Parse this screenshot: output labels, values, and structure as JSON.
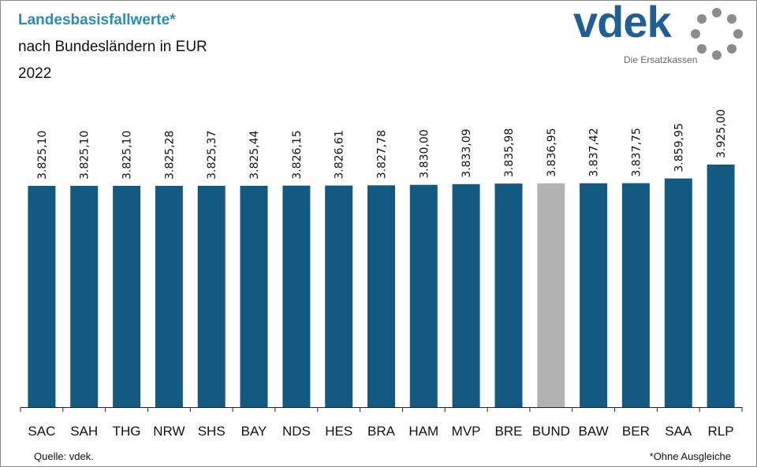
{
  "header": {
    "title": "Landesbasisfallwerte*",
    "subtitle": "nach Bundesländern  in EUR",
    "year": "2022"
  },
  "logo": {
    "wordmark": "vdek",
    "tagline": "Die Ersatzkassen",
    "icon": "dotted-ring-icon"
  },
  "footer": {
    "source": "Quelle: vdek.",
    "footnote": "*Ohne Ausgleiche"
  },
  "colors": {
    "bar": "#135a82",
    "highlight": "#b3b3b3",
    "title": "#2a8bbd",
    "logo": "#1f5f96"
  },
  "chart_data": {
    "type": "bar",
    "title": "Landesbasisfallwerte*",
    "subtitle": "nach Bundesländern  in EUR",
    "xlabel": "",
    "ylabel": "",
    "grid": false,
    "highlight_category": "BUND",
    "categories": [
      "SAC",
      "SAH",
      "THG",
      "NRW",
      "SHS",
      "BAY",
      "NDS",
      "HES",
      "BRA",
      "HAM",
      "MVP",
      "BRE",
      "BUND",
      "BAW",
      "BER",
      "SAA",
      "RLP"
    ],
    "values": [
      3825.1,
      3825.1,
      3825.1,
      3825.28,
      3825.37,
      3825.44,
      3826.15,
      3826.61,
      3827.78,
      3830.0,
      3833.09,
      3835.98,
      3836.95,
      3837.42,
      3837.75,
      3859.95,
      3925.0
    ],
    "value_labels": [
      "3.825,10",
      "3.825,10",
      "3.825,10",
      "3.825,28",
      "3.825,37",
      "3.825,44",
      "3.826,15",
      "3.826,61",
      "3.827,78",
      "3.830,00",
      "3.833,09",
      "3.835,98",
      "3.836,95",
      "3.837,42",
      "3.837,75",
      "3.859,95",
      "3.925,00"
    ]
  }
}
